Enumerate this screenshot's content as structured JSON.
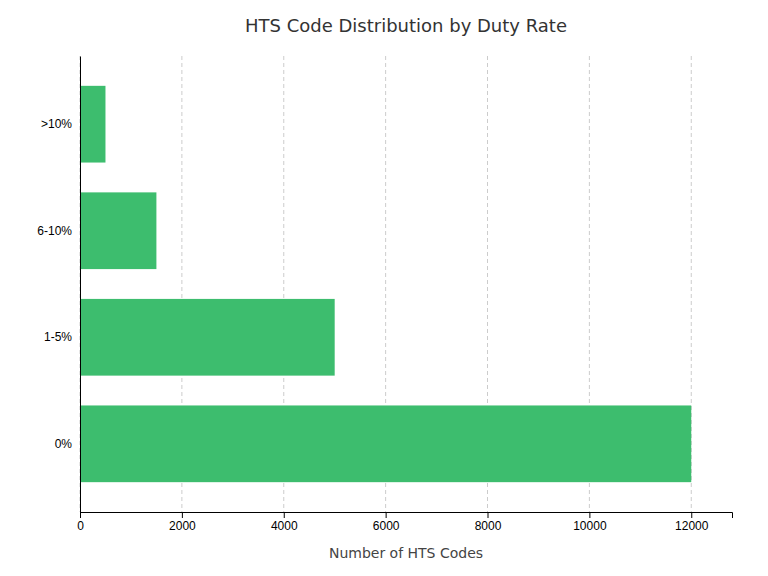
{
  "chart_data": {
    "type": "bar",
    "orientation": "horizontal",
    "title": "HTS Code Distribution by Duty Rate",
    "categories": [
      "0%",
      "1-5%",
      "6-10%",
      ">10%"
    ],
    "values": [
      12000,
      5000,
      1500,
      500
    ],
    "color": "#3DBD6E",
    "xlabel": "Number of HTS Codes",
    "xlim": [
      0,
      12800
    ],
    "xticks": [
      0,
      2000,
      4000,
      6000,
      8000,
      10000,
      12000
    ],
    "grid": true
  }
}
